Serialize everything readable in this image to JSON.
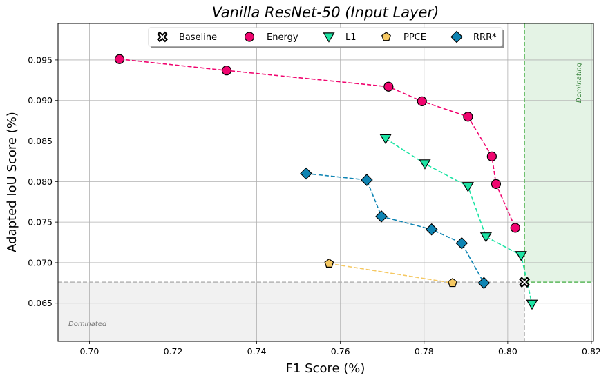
{
  "chart_data": {
    "type": "scatter",
    "title": "Vanilla ResNet-50 (Input Layer)",
    "xlabel": "F1 Score (%)",
    "ylabel": "Adapted IoU Score (%)",
    "xlim": [
      0.6925,
      0.8205
    ],
    "ylim": [
      0.0603,
      0.0995
    ],
    "xticks": [
      "0.70",
      "0.72",
      "0.74",
      "0.76",
      "0.78",
      "0.80",
      "0.82"
    ],
    "xtick_values": [
      0.7,
      0.72,
      0.74,
      0.76,
      0.78,
      0.8,
      0.82
    ],
    "yticks": [
      "0.065",
      "0.070",
      "0.075",
      "0.080",
      "0.085",
      "0.090",
      "0.095"
    ],
    "ytick_values": [
      0.065,
      0.07,
      0.075,
      0.08,
      0.085,
      0.09,
      0.095
    ],
    "grid": true,
    "legend_position": "top-center",
    "baseline": {
      "x": 0.804,
      "y": 0.0676
    },
    "regions": [
      {
        "label": "Dominating",
        "color": "#4caf50"
      },
      {
        "label": "Dominated",
        "color": "#9e9e9e"
      }
    ],
    "series": [
      {
        "name": "Baseline",
        "marker": "cross",
        "color": "#000000",
        "connect": false,
        "x": [
          0.804
        ],
        "y": [
          0.0676
        ]
      },
      {
        "name": "Energy",
        "marker": "circle",
        "color": "#f0056f",
        "connect": true,
        "x": [
          0.7072,
          0.7328,
          0.7715,
          0.7795,
          0.7905,
          0.7962,
          0.7972,
          0.8018
        ],
        "y": [
          0.0951,
          0.0937,
          0.0917,
          0.0899,
          0.088,
          0.0831,
          0.0797,
          0.0743
        ]
      },
      {
        "name": "L1",
        "marker": "triangle-down",
        "color": "#1de4a4",
        "connect": true,
        "x": [
          0.7708,
          0.7802,
          0.7905,
          0.7948,
          0.8032,
          0.8058
        ],
        "y": [
          0.0853,
          0.0822,
          0.0794,
          0.0732,
          0.0709,
          0.0649
        ]
      },
      {
        "name": "PPCE",
        "marker": "pentagon",
        "color": "#f5c862",
        "connect": true,
        "x": [
          0.7573,
          0.7868
        ],
        "y": [
          0.0699,
          0.0675
        ]
      },
      {
        "name": "RRR*",
        "marker": "diamond",
        "color": "#0e84b3",
        "connect": true,
        "x": [
          0.7518,
          0.7663,
          0.7698,
          0.7818,
          0.789,
          0.7943
        ],
        "y": [
          0.081,
          0.0802,
          0.0757,
          0.0741,
          0.0724,
          0.0675
        ]
      }
    ]
  }
}
